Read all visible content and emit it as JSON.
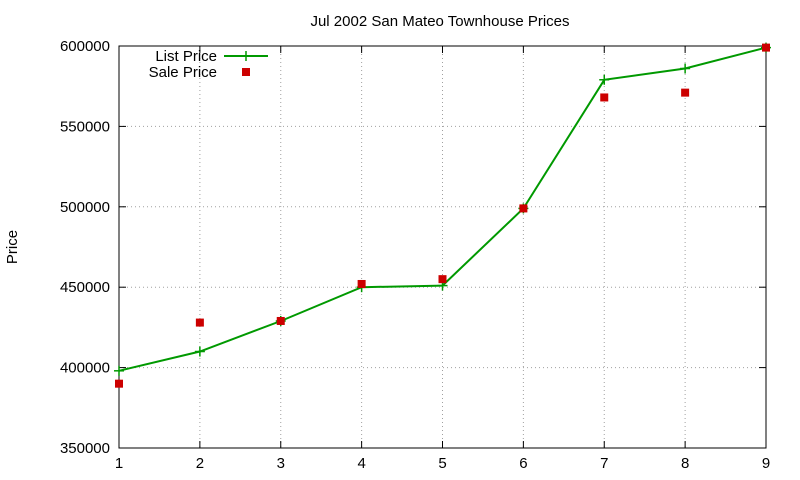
{
  "chart_data": {
    "type": "line",
    "title": "Jul 2002 San Mateo Townhouse Prices",
    "xlabel": "",
    "ylabel": "Price",
    "x": [
      1,
      2,
      3,
      4,
      5,
      6,
      7,
      8,
      9
    ],
    "xlim": [
      1,
      9
    ],
    "ylim": [
      350000,
      600000
    ],
    "x_ticks": [
      "1",
      "2",
      "3",
      "4",
      "5",
      "6",
      "7",
      "8",
      "9"
    ],
    "y_ticks": [
      "350000",
      "400000",
      "450000",
      "500000",
      "550000",
      "600000"
    ],
    "grid": true,
    "legend_position": "top-left",
    "series": [
      {
        "name": "List Price",
        "style": "line-with-plus-markers",
        "color": "#009900",
        "values": [
          398000,
          410000,
          429000,
          450000,
          451000,
          499000,
          579000,
          586000,
          599000
        ]
      },
      {
        "name": "Sale Price",
        "style": "square-markers",
        "color": "#cc0000",
        "values": [
          390000,
          428000,
          429000,
          452000,
          455000,
          499000,
          568000,
          571000,
          599000
        ]
      }
    ]
  }
}
